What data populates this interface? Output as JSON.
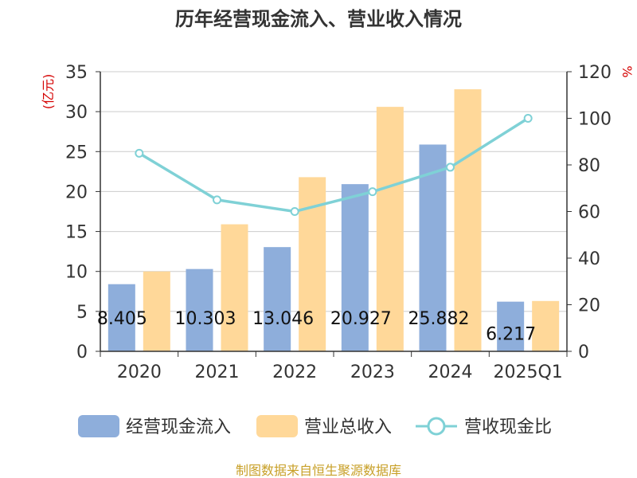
{
  "chart_data": {
    "type": "bar",
    "title": "历年经营现金流入、营业收入情况",
    "categories": [
      "2020",
      "2021",
      "2022",
      "2023",
      "2024",
      "2025Q1"
    ],
    "series": [
      {
        "name": "经营现金流入",
        "type": "bar",
        "axis": "left",
        "color": "#8eaedb",
        "values": [
          8.405,
          10.303,
          13.046,
          20.927,
          25.882,
          6.217
        ],
        "labels": [
          "8.405",
          "10.303",
          "13.046",
          "20.927",
          "25.882",
          "6.217"
        ]
      },
      {
        "name": "营业总收入",
        "type": "bar",
        "axis": "left",
        "color": "#ffd899",
        "values": [
          10.0,
          15.9,
          21.8,
          30.6,
          32.8,
          6.3
        ]
      },
      {
        "name": "营收现金比",
        "type": "line",
        "axis": "right",
        "color": "#7fd1d6",
        "values": [
          85,
          65,
          60,
          68.5,
          79,
          100
        ]
      }
    ],
    "left_axis": {
      "label": "(亿元)",
      "min": 0,
      "max": 35,
      "ticks": [
        0,
        5,
        10,
        15,
        20,
        25,
        30,
        35
      ]
    },
    "right_axis": {
      "label": "%",
      "min": 0,
      "max": 120,
      "ticks": [
        0,
        20,
        40,
        60,
        80,
        100,
        120
      ]
    },
    "legend_position": "bottom",
    "grid": true
  },
  "source": "制图数据来自恒生聚源数据库"
}
